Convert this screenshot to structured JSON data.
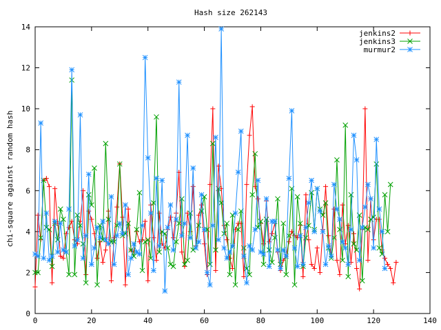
{
  "chart_data": {
    "type": "line",
    "title": "Hash size 262143",
    "xlabel": "",
    "ylabel": "chi-square against random hash",
    "xlim": [
      0,
      140
    ],
    "ylim": [
      0,
      14
    ],
    "xticks": [
      0,
      20,
      40,
      60,
      80,
      100,
      120,
      140
    ],
    "yticks": [
      0,
      2,
      4,
      6,
      8,
      10,
      12,
      14
    ],
    "grid": false,
    "legend_position": "top-right",
    "series": [
      {
        "name": "jenkins2",
        "color": "#ff0000",
        "marker": "plus",
        "y": [
          1.3,
          4.8,
          3.6,
          6.5,
          6.6,
          6.2,
          1.5,
          6.1,
          4.4,
          2.8,
          2.7,
          3.9,
          4.2,
          4.5,
          3.6,
          3.4,
          4.5,
          6.0,
          1.9,
          5.0,
          4.6,
          3.9,
          2.7,
          3.5,
          2.5,
          3.1,
          5.0,
          1.6,
          3.7,
          5.2,
          7.3,
          4.7,
          1.4,
          5.1,
          3.1,
          3.0,
          4.0,
          3.5,
          3.6,
          4.5,
          1.6,
          5.3,
          3.7,
          2.6,
          4.9,
          3.4,
          3.2,
          4.1,
          4.7,
          3.7,
          4.9,
          6.9,
          3.0,
          2.3,
          4.9,
          4.0,
          6.2,
          3.3,
          4.8,
          5.3,
          3.4,
          1.9,
          6.3,
          10.0,
          2.1,
          7.2,
          6.1,
          4.3,
          3.6,
          2.7,
          2.2,
          4.1,
          4.4,
          4.4,
          1.8,
          6.3,
          8.7,
          10.1,
          6.2,
          5.6,
          4.4,
          3.4,
          5.5,
          3.5,
          3.9,
          4.4,
          3.0,
          2.1,
          2.6,
          2.8,
          3.5,
          4.0,
          3.8,
          3.7,
          4.3,
          1.8,
          5.8,
          3.6,
          2.4,
          2.2,
          3.2,
          2.0,
          4.1,
          6.2,
          3.8,
          2.8,
          5.1,
          2.6,
          1.9,
          5.3,
          3.4,
          4.3,
          2.5,
          3.9,
          2.2,
          1.2,
          4.1,
          10.0,
          2.6,
          5.6,
          3.6,
          4.6,
          4.6,
          3.1,
          2.7,
          2.4,
          2.2,
          1.5,
          2.5
        ]
      },
      {
        "name": "jenkins3",
        "color": "#00a000",
        "marker": "cross",
        "y": [
          2.0,
          2.0,
          3.7,
          6.5,
          4.2,
          4.1,
          2.3,
          4.4,
          3.6,
          5.1,
          4.6,
          3.0,
          1.9,
          11.4,
          1.9,
          4.8,
          4.3,
          3.4,
          1.5,
          5.8,
          5.3,
          7.1,
          1.4,
          4.3,
          3.6,
          8.3,
          4.6,
          3.5,
          3.5,
          4.3,
          7.3,
          3.8,
          3.9,
          4.4,
          3.1,
          2.8,
          4.1,
          5.9,
          2.1,
          3.5,
          3.6,
          2.7,
          5.4,
          9.6,
          3.0,
          4.0,
          3.9,
          3.2,
          2.4,
          2.3,
          3.5,
          4.4,
          5.6,
          2.4,
          2.6,
          4.9,
          3.1,
          3.2,
          4.3,
          5.0,
          5.7,
          4.1,
          2.4,
          8.3,
          3.1,
          6.1,
          5.4,
          3.9,
          4.4,
          1.9,
          4.8,
          1.4,
          4.1,
          5.0,
          3.2,
          2.2,
          1.9,
          5.8,
          7.8,
          4.2,
          4.5,
          2.4,
          4.6,
          3.1,
          2.5,
          3.7,
          5.6,
          2.4,
          4.4,
          1.9,
          3.8,
          6.1,
          1.4,
          5.7,
          4.4,
          2.3,
          3.7,
          4.3,
          5.9,
          4.1,
          6.1,
          5.1,
          4.8,
          5.4,
          3.2,
          2.7,
          3.7,
          7.5,
          4.1,
          2.6,
          9.2,
          1.8,
          5.8,
          3.4,
          3.1,
          4.8,
          1.6,
          4.2,
          4.1,
          4.6,
          4.7,
          7.3,
          3.2,
          2.9,
          5.8,
          4.0,
          6.3
        ]
      },
      {
        "name": "murmur2",
        "color": "#1e90ff",
        "marker": "star",
        "y": [
          2.9,
          2.8,
          9.3,
          2.7,
          4.9,
          2.6,
          2.8,
          4.5,
          3.0,
          4.4,
          3.1,
          3.0,
          5.1,
          11.9,
          3.3,
          3.6,
          9.7,
          2.7,
          3.8,
          6.8,
          2.4,
          3.2,
          4.2,
          3.7,
          4.5,
          3.6,
          3.4,
          5.7,
          2.4,
          3.8,
          4.4,
          3.9,
          5.3,
          1.9,
          2.7,
          3.4,
          3.0,
          2.9,
          4.3,
          12.5,
          7.6,
          4.9,
          2.1,
          6.6,
          3.3,
          6.5,
          1.1,
          4.2,
          5.3,
          3.1,
          4.6,
          11.3,
          3.8,
          4.4,
          8.7,
          3.7,
          7.1,
          3.2,
          3.5,
          5.8,
          4.1,
          2.0,
          1.4,
          4.3,
          8.6,
          3.6,
          13.9,
          3.2,
          2.7,
          3.0,
          3.3,
          4.9,
          6.9,
          8.9,
          2.8,
          1.5,
          3.3,
          3.1,
          4.1,
          6.5,
          3.0,
          2.9,
          5.6,
          2.3,
          4.5,
          4.5,
          3.1,
          2.2,
          3.1,
          2.8,
          6.6,
          9.9,
          3.2,
          2.3,
          3.8,
          2.4,
          4.2,
          5.4,
          6.5,
          4.0,
          6.1,
          5.0,
          4.0,
          2.4,
          3.3,
          2.8,
          6.3,
          5.1,
          4.6,
          3.5,
          3.2,
          2.4,
          4.1,
          8.7,
          7.5,
          2.6,
          4.2,
          5.2,
          6.3,
          5.6,
          3.2,
          8.5,
          5.1,
          4.0,
          2.2
        ]
      }
    ]
  }
}
